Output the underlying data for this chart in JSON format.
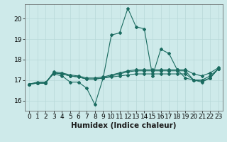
{
  "xlabel": "Humidex (Indice chaleur)",
  "background_color": "#ceeaea",
  "grid_color": "#b8d8d8",
  "line_color": "#1a6b60",
  "xlim": [
    -0.5,
    23.5
  ],
  "ylim": [
    15.5,
    20.7
  ],
  "yticks": [
    16,
    17,
    18,
    19,
    20
  ],
  "xticks": [
    0,
    1,
    2,
    3,
    4,
    5,
    6,
    7,
    8,
    9,
    10,
    11,
    12,
    13,
    14,
    15,
    16,
    17,
    18,
    19,
    20,
    21,
    22,
    23
  ],
  "lines": [
    {
      "x": [
        0,
        1,
        2,
        3,
        4,
        5,
        6,
        7,
        8,
        9,
        10,
        11,
        12,
        13,
        14,
        15,
        16,
        17,
        18,
        19,
        20,
        21,
        22,
        23
      ],
      "y": [
        16.8,
        16.9,
        16.9,
        17.3,
        17.2,
        16.9,
        16.9,
        16.6,
        15.8,
        17.1,
        19.2,
        19.3,
        20.5,
        19.6,
        19.5,
        17.2,
        18.5,
        18.3,
        17.5,
        17.1,
        17.0,
        16.9,
        17.1,
        17.55
      ]
    },
    {
      "x": [
        0,
        1,
        2,
        3,
        4,
        5,
        6,
        7,
        8,
        9,
        10,
        11,
        12,
        13,
        14,
        15,
        16,
        17,
        18,
        19,
        20,
        21,
        22,
        23
      ],
      "y": [
        16.8,
        16.85,
        16.85,
        17.35,
        17.3,
        17.2,
        17.15,
        17.05,
        17.05,
        17.1,
        17.15,
        17.2,
        17.25,
        17.3,
        17.3,
        17.3,
        17.3,
        17.3,
        17.3,
        17.3,
        17.0,
        16.95,
        17.1,
        17.55
      ]
    },
    {
      "x": [
        0,
        1,
        2,
        3,
        4,
        5,
        6,
        7,
        8,
        9,
        10,
        11,
        12,
        13,
        14,
        15,
        16,
        17,
        18,
        19,
        20,
        21,
        22,
        23
      ],
      "y": [
        16.8,
        16.85,
        16.85,
        17.35,
        17.3,
        17.2,
        17.15,
        17.05,
        17.05,
        17.1,
        17.2,
        17.3,
        17.4,
        17.45,
        17.45,
        17.45,
        17.45,
        17.45,
        17.45,
        17.45,
        17.0,
        17.0,
        17.2,
        17.55
      ]
    },
    {
      "x": [
        0,
        1,
        2,
        3,
        4,
        5,
        6,
        7,
        8,
        9,
        10,
        11,
        12,
        13,
        14,
        15,
        16,
        17,
        18,
        19,
        20,
        21,
        22,
        23
      ],
      "y": [
        16.8,
        16.85,
        16.85,
        17.4,
        17.35,
        17.25,
        17.2,
        17.1,
        17.1,
        17.15,
        17.25,
        17.35,
        17.45,
        17.5,
        17.5,
        17.5,
        17.5,
        17.5,
        17.5,
        17.5,
        17.3,
        17.2,
        17.35,
        17.6
      ]
    }
  ],
  "marker": "D",
  "markersize": 2.0,
  "linewidth": 0.8,
  "fontsize_ticks": 6.5,
  "fontsize_label": 7.5
}
